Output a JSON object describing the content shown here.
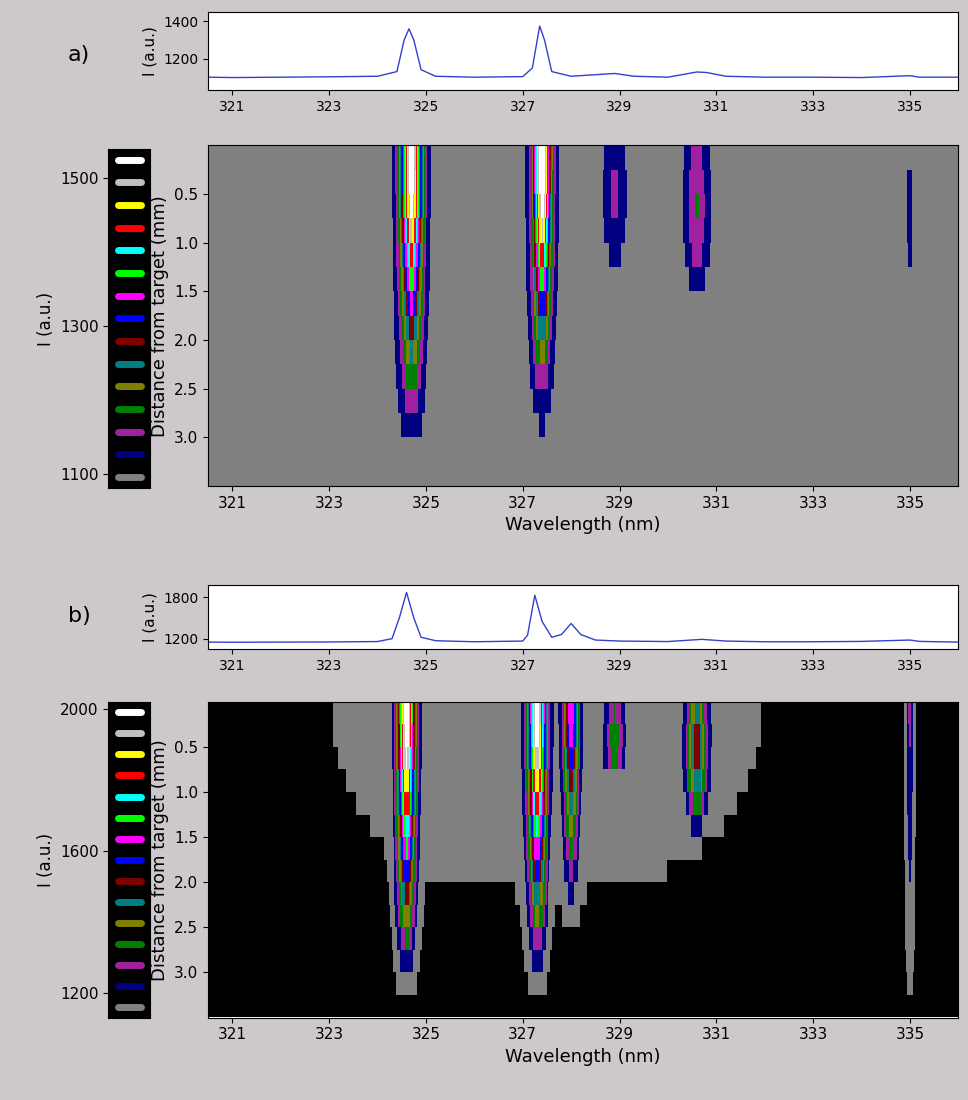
{
  "chart_data": [
    {
      "type": "line",
      "annotation": "a)",
      "ylabel": "I (a.u.)",
      "color": "#3340cc",
      "x": [
        320.5,
        321,
        322,
        323,
        324,
        324.4,
        324.55,
        324.65,
        324.75,
        324.9,
        325.2,
        326,
        327,
        327.2,
        327.35,
        327.45,
        327.6,
        328,
        328.9,
        329.3,
        330,
        330.6,
        330.8,
        331.2,
        332,
        333,
        334,
        335,
        335.2,
        336
      ],
      "values": [
        1100,
        1098,
        1100,
        1102,
        1105,
        1130,
        1300,
        1360,
        1300,
        1140,
        1105,
        1100,
        1103,
        1150,
        1375,
        1300,
        1130,
        1105,
        1120,
        1105,
        1100,
        1128,
        1125,
        1105,
        1100,
        1100,
        1098,
        1108,
        1100,
        1100
      ],
      "xlim": [
        320.5,
        336
      ],
      "xticks": [
        321,
        323,
        325,
        327,
        329,
        331,
        333,
        335
      ],
      "ylim": [
        1030,
        1450
      ],
      "yticks": [
        1200,
        1400
      ]
    },
    {
      "type": "heatmap",
      "xlabel": "Wavelength (nm)",
      "ylabel": "Distance from target (mm)",
      "xlim": [
        320.5,
        336
      ],
      "xticks": [
        321,
        323,
        325,
        327,
        329,
        331,
        333,
        335
      ],
      "ylim": [
        3.5,
        0.0
      ],
      "yticks": [
        0.5,
        1.0,
        1.5,
        2.0,
        2.5,
        3.0
      ],
      "distance": [
        0.125,
        0.375,
        0.625,
        0.875,
        1.125,
        1.375,
        1.625,
        1.875,
        2.125,
        2.375,
        2.625,
        2.875,
        3.125,
        3.375
      ],
      "background": 1100,
      "lines": [
        {
          "wavelength": 324.7,
          "fwhm": 0.35,
          "intensity": [
            450,
            440,
            420,
            380,
            330,
            280,
            230,
            180,
            140,
            100,
            60,
            30,
            8,
            0
          ]
        },
        {
          "wavelength": 327.4,
          "fwhm": 0.3,
          "intensity": [
            460,
            450,
            420,
            380,
            330,
            270,
            210,
            160,
            110,
            70,
            30,
            12,
            0,
            0
          ]
        },
        {
          "wavelength": 328.9,
          "fwhm": 0.35,
          "intensity": [
            35,
            45,
            45,
            35,
            15,
            0,
            0,
            0,
            0,
            0,
            0,
            0,
            0,
            0
          ]
        },
        {
          "wavelength": 330.6,
          "fwhm": 0.35,
          "intensity": [
            55,
            70,
            75,
            70,
            50,
            20,
            0,
            0,
            0,
            0,
            0,
            0,
            0,
            0
          ]
        },
        {
          "wavelength": 335.0,
          "fwhm": 0.1,
          "intensity": [
            0,
            20,
            20,
            20,
            15,
            0,
            0,
            0,
            0,
            0,
            0,
            0,
            0,
            0
          ]
        }
      ],
      "colorbar": {
        "label": "I (a.u.)",
        "range": [
          1080,
          1540
        ],
        "ticks": [
          1100,
          1300,
          1500
        ],
        "under_color": "#000000",
        "colors": [
          "#808080",
          "#000080",
          "#a0209f",
          "#008000",
          "#808000",
          "#008080",
          "#800000",
          "#0000ff",
          "#ff00ff",
          "#00ff00",
          "#00ffff",
          "#ff0000",
          "#ffff00",
          "#c0c0c0",
          "#ffffff"
        ]
      }
    },
    {
      "type": "line",
      "annotation": "b)",
      "ylabel": "I (a.u.)",
      "color": "#3340cc",
      "x": [
        320.5,
        321,
        322,
        323,
        324,
        324.3,
        324.45,
        324.6,
        324.75,
        324.9,
        325.2,
        326,
        327,
        327.1,
        327.25,
        327.4,
        327.6,
        327.8,
        328.0,
        328.2,
        328.5,
        329,
        330,
        330.7,
        331.2,
        332,
        333,
        334,
        335,
        335.2,
        336
      ],
      "values": [
        1150,
        1148,
        1150,
        1152,
        1158,
        1200,
        1500,
        1870,
        1500,
        1220,
        1170,
        1155,
        1165,
        1250,
        1830,
        1450,
        1220,
        1260,
        1420,
        1260,
        1180,
        1165,
        1158,
        1190,
        1165,
        1155,
        1155,
        1160,
        1180,
        1160,
        1150
      ],
      "xlim": [
        320.5,
        336
      ],
      "xticks": [
        321,
        323,
        325,
        327,
        329,
        331,
        333,
        335
      ],
      "ylim": [
        1050,
        1975
      ],
      "yticks": [
        1200,
        1800
      ]
    },
    {
      "type": "heatmap",
      "xlabel": "Wavelength (nm)",
      "ylabel": "Distance from target (mm)",
      "xlim": [
        320.5,
        336
      ],
      "xticks": [
        321,
        323,
        325,
        327,
        329,
        331,
        333,
        335
      ],
      "ylim": [
        3.5,
        0.0
      ],
      "yticks": [
        0.5,
        1.0,
        1.5,
        2.0,
        2.5,
        3.0
      ],
      "distance": [
        0.125,
        0.375,
        0.625,
        0.875,
        1.125,
        1.375,
        1.625,
        1.875,
        2.125,
        2.375,
        2.625,
        2.875,
        3.125,
        3.375
      ],
      "background": 1120,
      "lines": [
        {
          "wavelength": 327.5,
          "fwhm": 6.0,
          "intensity": [
            45,
            45,
            42,
            38,
            33,
            28,
            22,
            16,
            10,
            5,
            0,
            0,
            0,
            0
          ]
        },
        {
          "wavelength": 324.6,
          "fwhm": 0.3,
          "intensity": [
            880,
            860,
            820,
            760,
            700,
            620,
            540,
            460,
            380,
            300,
            200,
            120,
            40,
            0
          ]
        },
        {
          "wavelength": 327.3,
          "fwhm": 0.3,
          "intensity": [
            850,
            830,
            790,
            730,
            660,
            580,
            500,
            420,
            340,
            260,
            170,
            100,
            30,
            0
          ]
        },
        {
          "wavelength": 328.0,
          "fwhm": 0.25,
          "intensity": [
            500,
            480,
            420,
            360,
            300,
            240,
            180,
            120,
            70,
            30,
            10,
            0,
            0,
            0
          ]
        },
        {
          "wavelength": 328.9,
          "fwhm": 0.3,
          "intensity": [
            150,
            200,
            180,
            0,
            0,
            0,
            0,
            0,
            0,
            0,
            0,
            0,
            0,
            0
          ]
        },
        {
          "wavelength": 330.6,
          "fwhm": 0.35,
          "intensity": [
            300,
            380,
            380,
            320,
            200,
            80,
            0,
            0,
            0,
            0,
            0,
            0,
            0,
            0
          ]
        },
        {
          "wavelength": 335.0,
          "fwhm": 0.12,
          "intensity": [
            150,
            140,
            130,
            120,
            110,
            100,
            90,
            80,
            70,
            60,
            50,
            40,
            20,
            0
          ]
        }
      ],
      "colorbar": {
        "label": "I (a.u.)",
        "range": [
          1130,
          2020
        ],
        "ticks": [
          1200,
          1600,
          2000
        ],
        "under_color": "#000000",
        "colors": [
          "#808080",
          "#000080",
          "#a0209f",
          "#008000",
          "#808000",
          "#008080",
          "#800000",
          "#0000ff",
          "#ff00ff",
          "#00ff00",
          "#00ffff",
          "#ff0000",
          "#ffff00",
          "#c0c0c0",
          "#ffffff"
        ]
      }
    }
  ]
}
